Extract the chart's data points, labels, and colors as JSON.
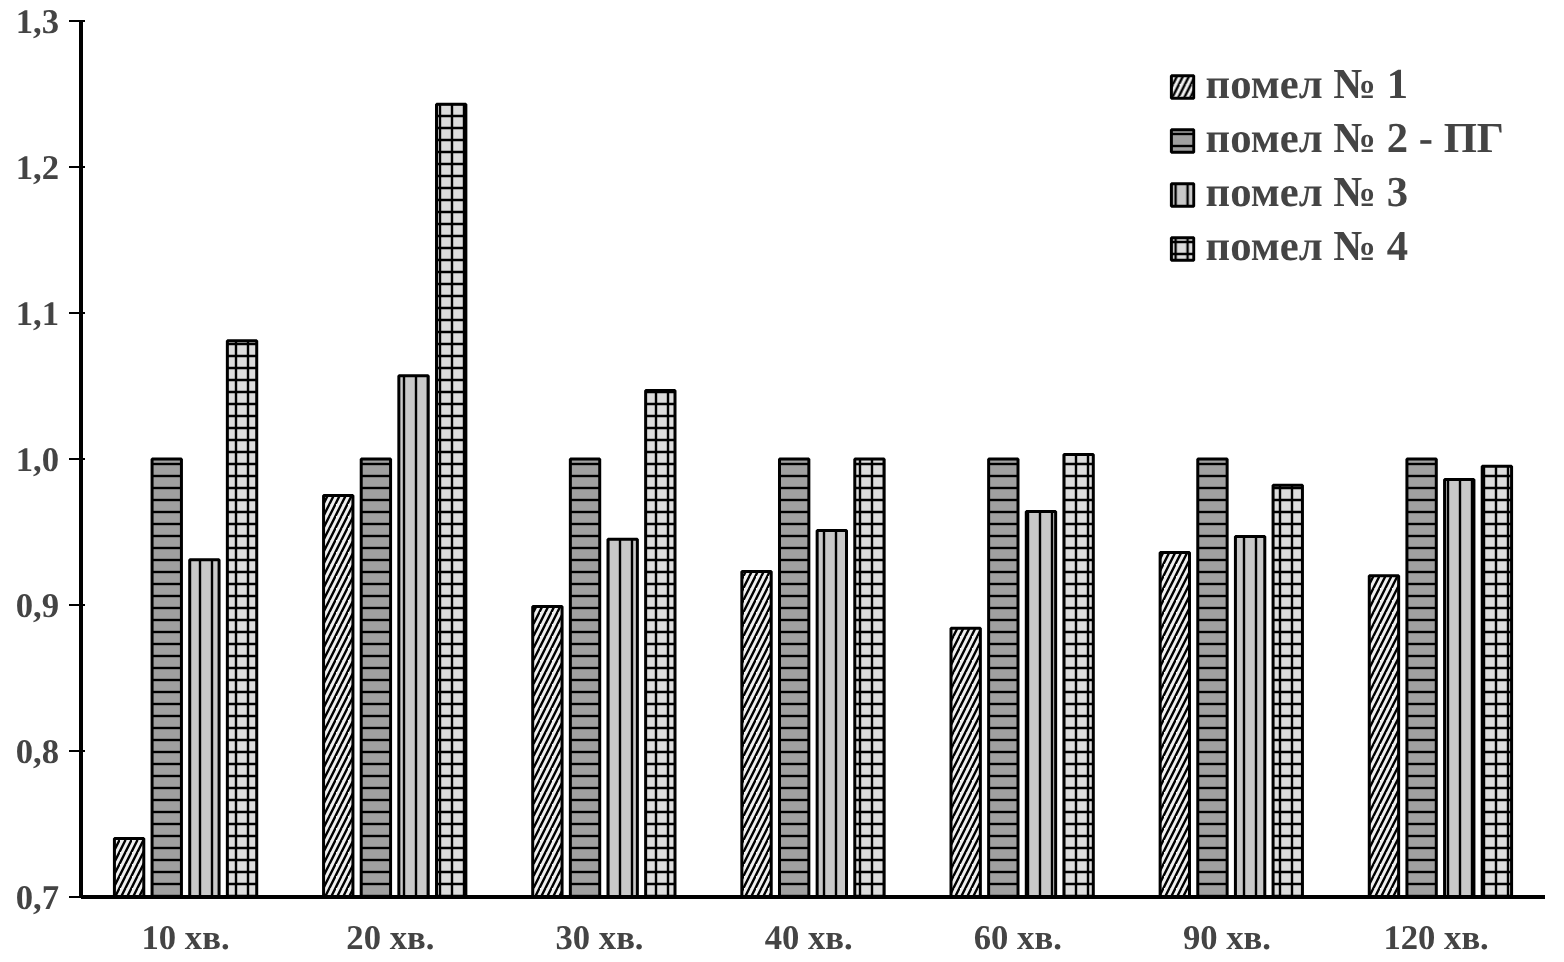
{
  "chart_data": {
    "type": "bar",
    "categories": [
      "10 хв.",
      "20  хв.",
      "30  хв.",
      "40  хв.",
      "60  хв.",
      "90  хв.",
      "120  хв."
    ],
    "series": [
      {
        "name": "помел № 1",
        "color": "#f0f0f0",
        "values": [
          0.74,
          0.975,
          0.899,
          0.923,
          0.884,
          0.936,
          0.92
        ]
      },
      {
        "name": "помел № 2 - ПГ",
        "color": "#a0a0a0",
        "values": [
          1.0,
          1.0,
          1.0,
          1.0,
          1.0,
          1.0,
          1.0
        ]
      },
      {
        "name": "помел № 3",
        "color": "#c8c8c8",
        "values": [
          0.931,
          1.057,
          0.945,
          0.951,
          0.964,
          0.947,
          0.986
        ]
      },
      {
        "name": "помел № 4",
        "color": "#dcdcdc",
        "values": [
          1.081,
          1.243,
          1.047,
          1.0,
          1.003,
          0.982,
          0.995
        ]
      }
    ],
    "ylim": [
      0.7,
      1.3
    ],
    "yticks": [
      {
        "value": 0.7,
        "label": "0,7"
      },
      {
        "value": 0.8,
        "label": "0,8"
      },
      {
        "value": 0.9,
        "label": "0,9"
      },
      {
        "value": 1.0,
        "label": "1,0"
      },
      {
        "value": 1.1,
        "label": "1,1"
      },
      {
        "value": 1.2,
        "label": "1,2"
      },
      {
        "value": 1.3,
        "label": "1,3"
      }
    ],
    "grid": false,
    "legend": "top right"
  }
}
